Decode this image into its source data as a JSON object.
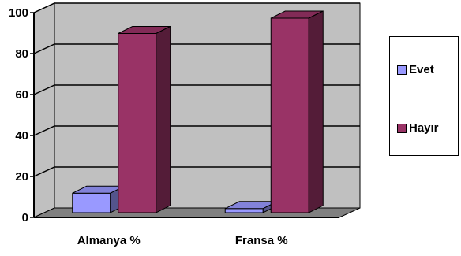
{
  "chart_data": {
    "type": "bar",
    "categories": [
      "Almanya %",
      "Fransa %"
    ],
    "series": [
      {
        "name": "Evet",
        "values": [
          9.5,
          2
        ],
        "color": "#9999ff"
      },
      {
        "name": "Hayır",
        "values": [
          87.5,
          95
        ],
        "color": "#993366"
      }
    ],
    "yticks": [
      0,
      20,
      40,
      60,
      80,
      100
    ],
    "ylim": [
      0,
      100
    ],
    "grid": true,
    "three_d": true,
    "wall_color": "#c0c0c0",
    "legend_position": "right"
  },
  "legend": {
    "items": [
      {
        "label": "Evet",
        "color": "#9999ff"
      },
      {
        "label": "Hayır",
        "color": "#993366"
      }
    ]
  }
}
